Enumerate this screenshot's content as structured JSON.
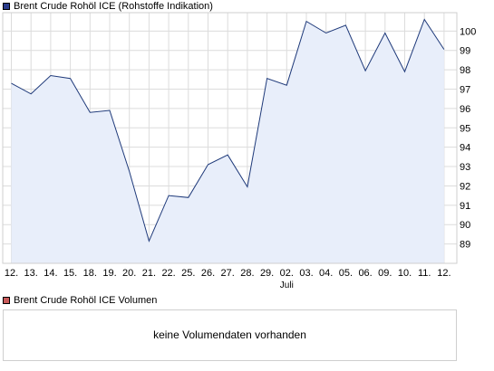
{
  "colors": {
    "line": "#1f3a7a",
    "fill": "#e8eefa",
    "grid": "#dcdcdc",
    "main_legend_swatch": "#2a3c8c",
    "volume_legend_swatch": "#c95a5a"
  },
  "main_legend": {
    "label": "Brent Crude Rohöl ICE (Rohstoffe Indikation)"
  },
  "volume_legend": {
    "label": "Brent Crude Rohöl ICE Volumen"
  },
  "volume_panel": {
    "message": "keine Volumendaten vorhanden"
  },
  "chart_data": {
    "type": "area",
    "x": [
      "12.",
      "13.",
      "14.",
      "15.",
      "18.",
      "19.",
      "20.",
      "21.",
      "22.",
      "25.",
      "26.",
      "27.",
      "28.",
      "29.",
      "02.",
      "03.",
      "04.",
      "05.",
      "06.",
      "09.",
      "10.",
      "11.",
      "12."
    ],
    "month_label": {
      "text": "Juli",
      "under_index": 14
    },
    "series": [
      {
        "values": [
          97.3,
          96.75,
          97.7,
          97.55,
          95.8,
          95.9,
          92.75,
          89.15,
          91.5,
          91.4,
          93.1,
          93.6,
          91.95,
          97.55,
          97.2,
          100.5,
          99.9,
          100.3,
          97.95,
          99.9,
          97.9,
          100.6,
          99.05
        ]
      }
    ],
    "y_ticks": [
      89,
      90,
      91,
      92,
      93,
      94,
      95,
      96,
      97,
      98,
      99,
      100
    ],
    "ylim": [
      88.0,
      100.95
    ],
    "y_axis_side": "right",
    "grid": true
  }
}
